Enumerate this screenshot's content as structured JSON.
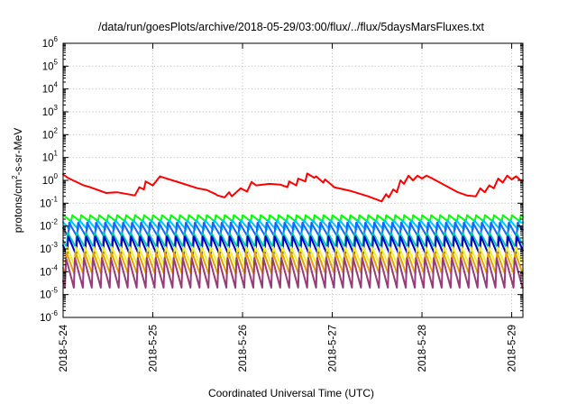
{
  "chart_data": {
    "type": "line",
    "title": "/data/run/goesPlots/archive/2018-05-29/03:00/flux/../flux/5daysMarsFluxes.txt",
    "xlabel": "Coordinated Universal Time (UTC)",
    "ylabel": {
      "prefix": "protons/cm",
      "superscript": "2",
      "suffix": "-s-sr-MeV"
    },
    "yscale": "log",
    "ylim": [
      1e-06,
      1000000.0
    ],
    "y_ticks": [
      {
        "base": "10",
        "exp": "-6",
        "value": 1e-06
      },
      {
        "base": "10",
        "exp": "-5",
        "value": 1e-05
      },
      {
        "base": "10",
        "exp": "-4",
        "value": 0.0001
      },
      {
        "base": "10",
        "exp": "-3",
        "value": 0.001
      },
      {
        "base": "10",
        "exp": "-2",
        "value": 0.01
      },
      {
        "base": "10",
        "exp": "-1",
        "value": 0.1
      },
      {
        "base": "10",
        "exp": "0",
        "value": 1
      },
      {
        "base": "10",
        "exp": "1",
        "value": 10
      },
      {
        "base": "10",
        "exp": "2",
        "value": 100
      },
      {
        "base": "10",
        "exp": "3",
        "value": 1000
      },
      {
        "base": "10",
        "exp": "4",
        "value": 10000
      },
      {
        "base": "10",
        "exp": "5",
        "value": 100000
      },
      {
        "base": "10",
        "exp": "6",
        "value": 1000000
      }
    ],
    "x_start": "2018-05-24T00:00",
    "x_end": "2018-05-29T03:00",
    "x_ticks": [
      "2018-5-24",
      "2018-5-25",
      "2018-5-26",
      "2018-5-27",
      "2018-5-28",
      "2018-5-29"
    ],
    "grid": true,
    "legend": "none",
    "series": [
      {
        "color": "#ff0000",
        "x_days": [
          0.0,
          0.05,
          0.23,
          0.3,
          0.48,
          0.6,
          0.8,
          0.85,
          0.9,
          0.92,
          1.0,
          1.08,
          1.1,
          1.3,
          1.5,
          1.6,
          1.7,
          1.72,
          1.8,
          1.85,
          1.88,
          1.98,
          2.05,
          2.1,
          2.15,
          2.3,
          2.42,
          2.5,
          2.52,
          2.6,
          2.62,
          2.7,
          2.72,
          2.8,
          2.82,
          2.9,
          2.92,
          3.0,
          3.02,
          3.2,
          3.4,
          3.55,
          3.6,
          3.63,
          3.68,
          3.72,
          3.76,
          3.8,
          3.85,
          3.9,
          3.95,
          4.0,
          4.05,
          4.1,
          4.2,
          4.4,
          4.5,
          4.6,
          4.65,
          4.7,
          4.75,
          4.8,
          4.85,
          4.9,
          4.95,
          5.0,
          5.05,
          5.1,
          5.125
        ],
        "values": [
          1.8,
          1.3,
          0.6,
          0.5,
          0.28,
          0.3,
          0.22,
          0.5,
          0.4,
          0.9,
          0.6,
          1.5,
          1.4,
          0.8,
          0.45,
          0.38,
          0.25,
          0.22,
          0.18,
          0.3,
          0.2,
          0.45,
          0.32,
          0.85,
          0.6,
          0.7,
          0.65,
          0.5,
          0.9,
          0.6,
          1.2,
          0.9,
          2.0,
          1.3,
          1.5,
          0.8,
          1.1,
          0.6,
          0.5,
          0.35,
          0.2,
          0.12,
          0.25,
          0.18,
          0.4,
          0.3,
          1.0,
          0.7,
          1.6,
          1.0,
          1.6,
          1.2,
          1.6,
          1.3,
          0.8,
          0.3,
          0.22,
          0.2,
          0.45,
          0.3,
          0.6,
          0.45,
          1.2,
          0.8,
          1.6,
          1.1,
          1.5,
          1.0,
          1.0
        ]
      },
      {
        "color": "#00ff00",
        "sawtooth": {
          "period_days": 0.1,
          "peak": 0.03,
          "trough": 0.016,
          "start_phase": 0.1
        }
      },
      {
        "color": "#00c8ff",
        "sawtooth": {
          "period_days": 0.1,
          "peak": 0.018,
          "trough": 0.007,
          "start_phase": 0.3
        }
      },
      {
        "color": "#1464ff",
        "sawtooth": {
          "period_days": 0.1,
          "peak": 0.014,
          "trough": 0.0035,
          "start_phase": 0.45
        }
      },
      {
        "color": "#00c8aa",
        "sawtooth": {
          "period_days": 0.1,
          "peak": 0.005,
          "trough": 0.0012,
          "start_phase": 0.6
        }
      },
      {
        "color": "#0000c8",
        "sawtooth": {
          "period_days": 0.1,
          "peak": 0.0035,
          "trough": 0.00055,
          "start_phase": 0.55
        }
      },
      {
        "color": "#f0f028",
        "sawtooth": {
          "period_days": 0.1,
          "peak": 0.0012,
          "trough": 0.00018,
          "start_phase": 0.7
        }
      },
      {
        "color": "#e6a000",
        "sawtooth": {
          "period_days": 0.1,
          "peak": 0.0007,
          "trough": 8e-05,
          "start_phase": 0.75
        }
      },
      {
        "color": "#963c78",
        "sawtooth": {
          "period_days": 0.1,
          "peak": 0.0004,
          "trough": 2e-05,
          "start_phase": 0.8
        }
      }
    ]
  }
}
